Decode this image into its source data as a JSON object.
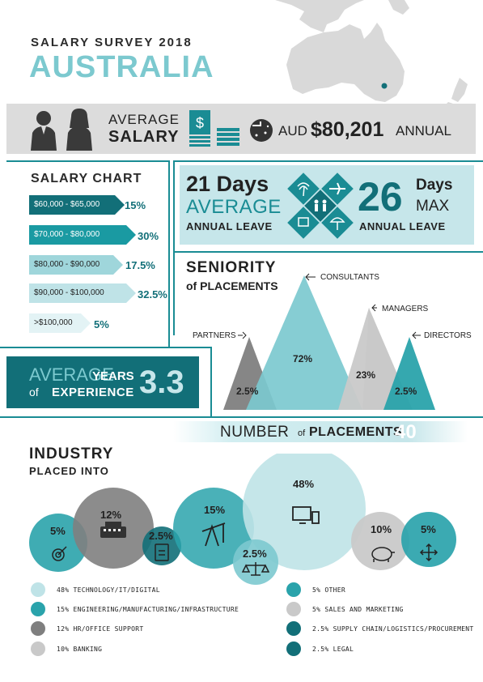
{
  "header": {
    "survey_title": "SALARY SURVEY 2018",
    "country": "AUSTRALIA"
  },
  "salary": {
    "line1": "AVERAGE",
    "line2": "SALARY",
    "currency": "AUD",
    "amount": "$80,201",
    "period": "ANNUAL",
    "dollar_sign": "$"
  },
  "salary_chart": {
    "title": "SALARY CHART",
    "rows": [
      {
        "range": "$60,000 - $65,000",
        "pct": "15%"
      },
      {
        "range": "$70,000 - $80,000",
        "pct": "30%"
      },
      {
        "range": "$80,000 - $90,000",
        "pct": "17.5%"
      },
      {
        "range": "$90,000 - $100,000",
        "pct": "32.5%"
      },
      {
        "range": ">$100,000",
        "pct": "5%"
      }
    ]
  },
  "leave": {
    "avg_days": "21 Days",
    "avg_word": "AVERAGE",
    "avg_label": "ANNUAL LEAVE",
    "max_num": "26",
    "max_days": "Days",
    "max_word": "MAX",
    "max_label": "ANNUAL LEAVE"
  },
  "seniority": {
    "title": "SENIORITY",
    "subtitle": "of PLACEMENTS",
    "items": [
      {
        "label": "PARTNERS",
        "pct": "2.5%",
        "color": "#7f7f7f"
      },
      {
        "label": "CONSULTANTS",
        "pct": "72%",
        "color": "#7cc9cf"
      },
      {
        "label": "MANAGERS",
        "pct": "23%",
        "color": "#c9c9c9"
      },
      {
        "label": "DIRECTORS",
        "pct": "2.5%",
        "color": "#2aa3ab"
      }
    ]
  },
  "experience": {
    "avg": "AVERAGE",
    "years": "YEARS",
    "of": "of",
    "exp": "EXPERIENCE",
    "value": "3.3"
  },
  "placements": {
    "number": "NUMBER",
    "of": "of",
    "placements": "PLACEMENTS",
    "count": "40"
  },
  "industry": {
    "title": "INDUSTRY",
    "subtitle": "PLACED INTO",
    "bubbles": [
      {
        "pct": "5%",
        "icon": "target-icon"
      },
      {
        "pct": "12%",
        "icon": "typewriter-icon"
      },
      {
        "pct": "2.5%",
        "icon": "clipboard-icon"
      },
      {
        "pct": "15%",
        "icon": "oil-pump-icon"
      },
      {
        "pct": "2.5%",
        "icon": "scales-icon"
      },
      {
        "pct": "48%",
        "icon": "devices-icon"
      },
      {
        "pct": "10%",
        "icon": "piggy-bank-icon"
      },
      {
        "pct": "5%",
        "icon": "move-arrows-icon"
      }
    ],
    "legend_left": [
      {
        "text": "48% TECHNOLOGY/IT/DIGITAL",
        "color": "#bfe3e7",
        "icon": "devices-icon"
      },
      {
        "text": "15% ENGINEERING/MANUFACTURING/INFRASTRUCTURE",
        "color": "#2aa3ab",
        "icon": "oil-pump-icon"
      },
      {
        "text": "12% HR/OFFICE SUPPORT",
        "color": "#7f7f7f",
        "icon": "typewriter-icon"
      },
      {
        "text": "10% BANKING",
        "color": "#c9c9c9",
        "icon": "piggy-bank-icon"
      }
    ],
    "legend_right": [
      {
        "text": "5%  OTHER",
        "color": "#2aa3ab",
        "icon": "move-arrows-icon"
      },
      {
        "text": "5%  SALES AND MARKETING",
        "color": "#c9c9c9",
        "icon": "target-icon"
      },
      {
        "text": "2.5% SUPPLY CHAIN/LOGISTICS/PROCUREMENT",
        "color": "#126f78",
        "icon": "clipboard-icon"
      },
      {
        "text": "2.5% LEGAL",
        "color": "#126f78",
        "icon": "scales-icon"
      }
    ]
  },
  "colors": {
    "teal": "#1a8c94",
    "dark_teal": "#126f78",
    "light_teal": "#7cc9cf",
    "pale_teal": "#c6e6ea",
    "grey": "#7f7f7f",
    "light_grey": "#c9c9c9"
  }
}
